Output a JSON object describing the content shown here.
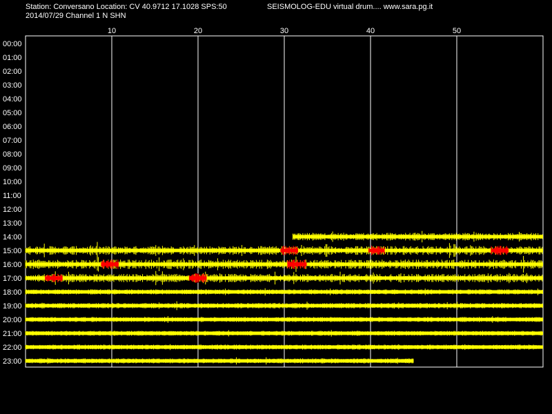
{
  "header": {
    "station_line": "Station: Conversano Location: CV 40.9712 17.1028 SPS:50",
    "date_line": "2014/07/29  Channel 1 N SHN",
    "app_line": "SEISMOLOG-EDU virtual drum.... www.sara.pg.it"
  },
  "colors": {
    "background": "#000000",
    "frame": "#ffffff",
    "trace": "#ffff00",
    "event_marker": "#ff0000",
    "text": "#ffffff"
  },
  "chart_data": {
    "type": "helicorder",
    "title": "",
    "x_tick_labels": [
      "10",
      "20",
      "30",
      "40",
      "50"
    ],
    "x_ticks": [
      10,
      20,
      30,
      40,
      50
    ],
    "xlim": [
      0,
      60
    ],
    "x_unit": "minutes",
    "rows": [
      "00:00",
      "01:00",
      "02:00",
      "03:00",
      "04:00",
      "05:00",
      "06:00",
      "07:00",
      "08:00",
      "09:00",
      "10:00",
      "11:00",
      "12:00",
      "13:00",
      "14:00",
      "15:00",
      "16:00",
      "17:00",
      "18:00",
      "19:00",
      "20:00",
      "21:00",
      "22:00",
      "23:00"
    ],
    "traces": [
      {
        "row": "14:00",
        "start": 31.0,
        "end": 60,
        "amp": 0.45
      },
      {
        "row": "15:00",
        "start": 0,
        "end": 60,
        "amp": 0.55
      },
      {
        "row": "16:00",
        "start": 0,
        "end": 60,
        "amp": 0.6
      },
      {
        "row": "17:00",
        "start": 0,
        "end": 60,
        "amp": 0.5
      },
      {
        "row": "18:00",
        "start": 0,
        "end": 60,
        "amp": 0.2
      },
      {
        "row": "19:00",
        "start": 0,
        "end": 60,
        "amp": 0.25
      },
      {
        "row": "20:00",
        "start": 0,
        "end": 60,
        "amp": 0.2
      },
      {
        "row": "21:00",
        "start": 0,
        "end": 60,
        "amp": 0.2
      },
      {
        "row": "22:00",
        "start": 0,
        "end": 60,
        "amp": 0.2
      },
      {
        "row": "23:00",
        "start": 0,
        "end": 45.0,
        "amp": 0.2
      }
    ],
    "events": [
      {
        "row": "15:00",
        "start": 29.6,
        "end": 31.6
      },
      {
        "row": "15:00",
        "start": 39.8,
        "end": 41.6
      },
      {
        "row": "15:00",
        "start": 54.0,
        "end": 56.0
      },
      {
        "row": "16:00",
        "start": 8.8,
        "end": 10.8
      },
      {
        "row": "16:00",
        "start": 30.4,
        "end": 32.6
      },
      {
        "row": "17:00",
        "start": 2.3,
        "end": 4.3
      },
      {
        "row": "17:00",
        "start": 19.0,
        "end": 21.0
      }
    ]
  }
}
